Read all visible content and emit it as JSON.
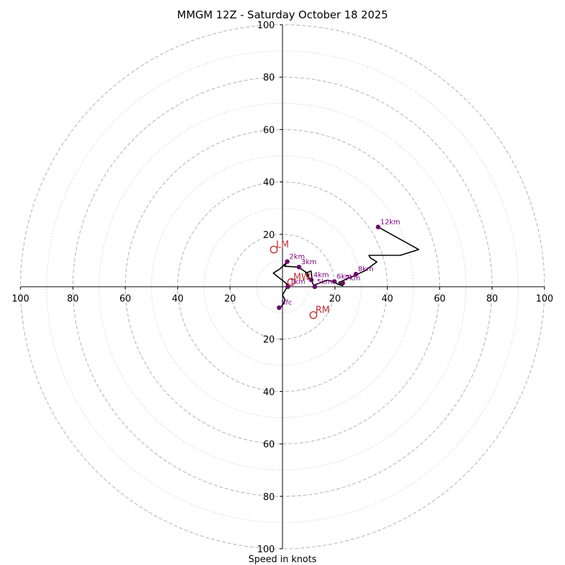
{
  "chart_data": {
    "type": "hodograph",
    "title": "MMGM 12Z - Saturday October 18 2025",
    "xlabel": "Speed in knots",
    "units": "knots",
    "max_speed": 100,
    "major_rings": [
      20,
      40,
      60,
      80,
      100
    ],
    "minor_rings": [
      10,
      30,
      50,
      70,
      90
    ],
    "x_tick_labels": [
      "100",
      "80",
      "60",
      "40",
      "20",
      "20",
      "40",
      "60",
      "80",
      "100"
    ],
    "x_tick_values": [
      -100,
      -80,
      -60,
      -40,
      -20,
      20,
      40,
      60,
      80,
      100
    ],
    "y_tick_labels": [
      "100",
      "80",
      "60",
      "40",
      "20",
      "20",
      "40",
      "60",
      "80",
      "100"
    ],
    "y_tick_values": [
      100,
      80,
      60,
      40,
      20,
      -20,
      -40,
      -60,
      -80,
      -100
    ],
    "hodograph_trace": {
      "u": [
        -1.3,
        -0.4,
        0.3,
        1.0,
        0.0,
        1.8,
        1.5,
        2.0,
        -3.5,
        -1.0,
        1.6,
        0.8,
        2.8,
        6.0,
        9.5,
        10.3,
        8.8,
        10.9,
        11.5,
        12.3,
        12.0,
        17.0,
        19.5,
        21.0,
        23.0,
        21.4,
        26.0,
        28.0,
        31.3,
        36.0,
        33.5,
        33.0,
        45.0,
        52.0,
        36.5
      ],
      "v": [
        -8.0,
        -7.5,
        -6.5,
        -5.0,
        -3.2,
        0.0,
        1.0,
        0.8,
        5.2,
        6.8,
        9.3,
        7.8,
        7.7,
        7.5,
        5.2,
        3.0,
        5.2,
        6.0,
        1.2,
        0.4,
        0.6,
        2.5,
        2.0,
        1.0,
        0.4,
        1.6,
        3.6,
        4.5,
        6.0,
        9.5,
        11.0,
        12.0,
        12.0,
        14.2,
        22.8
      ]
    },
    "height_points": [
      {
        "label": "Sfc",
        "u": -1.3,
        "v": -8.0
      },
      {
        "label": "1km",
        "u": 2.0,
        "v": 0.0
      },
      {
        "label": "2km",
        "u": 1.8,
        "v": 9.6
      },
      {
        "label": "3km",
        "u": 6.3,
        "v": 7.5
      },
      {
        "label": "4km",
        "u": 11.0,
        "v": 2.6
      },
      {
        "label": "5km",
        "u": 12.3,
        "v": 0.0
      },
      {
        "label": "6km",
        "u": 19.8,
        "v": 2.0
      },
      {
        "label": "7km",
        "u": 23.0,
        "v": 1.4
      },
      {
        "label": "8km",
        "u": 28.0,
        "v": 4.8
      },
      {
        "label": "12km",
        "u": 36.5,
        "v": 22.8
      }
    ],
    "storm_motions": [
      {
        "label": "LM",
        "u": -3.3,
        "v": 14.2
      },
      {
        "label": "RM",
        "u": 11.8,
        "v": -10.8
      },
      {
        "label": "MW",
        "u": 3.3,
        "v": 1.8
      }
    ],
    "colors": {
      "trace": "#000000",
      "height_points": "#6a0a6a",
      "height_labels": "#800080",
      "storm_motion": "#c03030",
      "rings": "#bdbdbd"
    }
  }
}
